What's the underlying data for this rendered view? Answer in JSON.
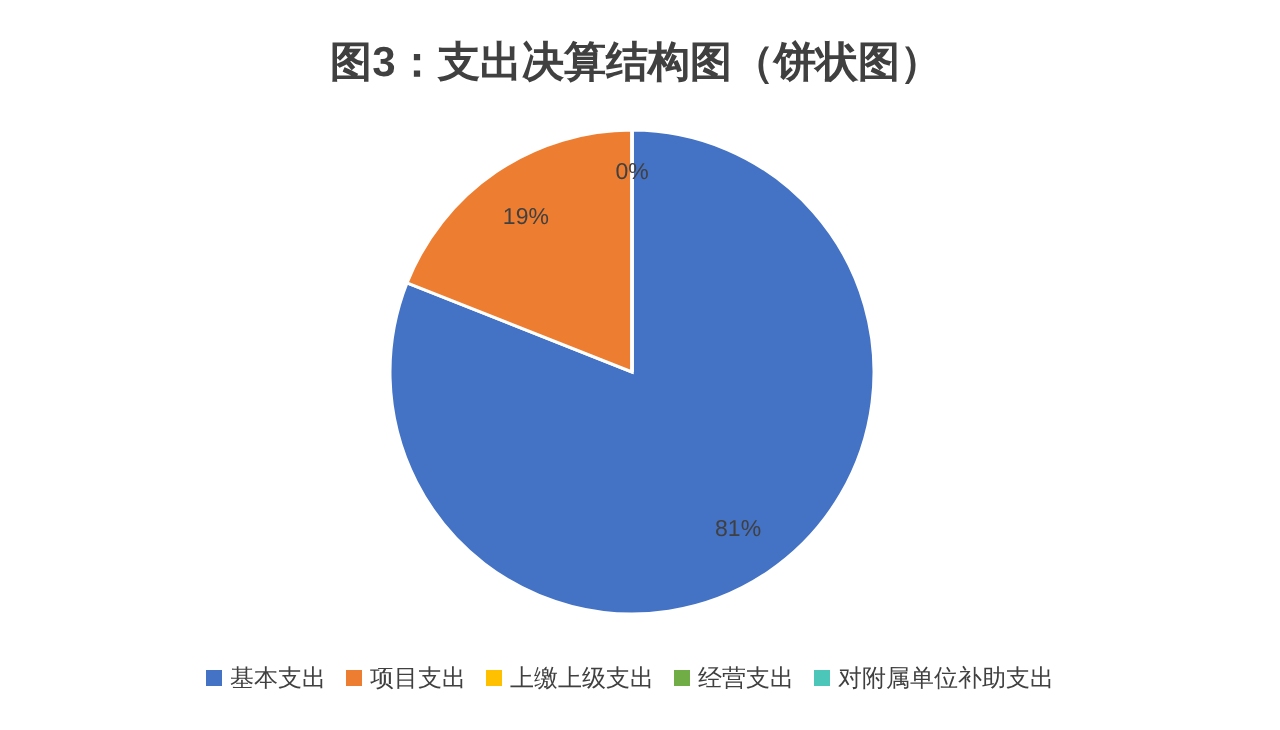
{
  "chart_data": {
    "type": "pie",
    "title": "图3：支出决算结构图（饼状图）",
    "categories": [
      "基本支出",
      "项目支出",
      "上缴上级支出",
      "经营支出",
      "对附属单位补助支出"
    ],
    "values": [
      81,
      19,
      0,
      0,
      0
    ],
    "colors": [
      "#4472c4",
      "#ed7d31",
      "#ffc000",
      "#70ad47",
      "#4bc6b9"
    ],
    "value_labels": [
      "81%",
      "19%",
      "0%",
      null,
      null
    ],
    "legend": "bottom"
  }
}
